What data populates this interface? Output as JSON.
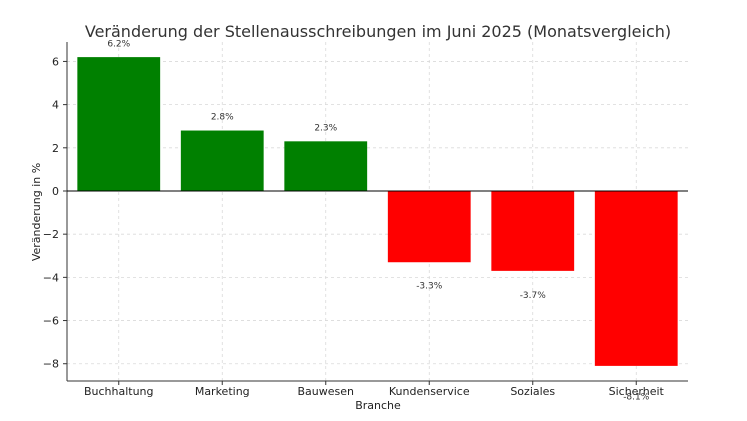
{
  "chart_data": {
    "type": "bar",
    "title": "Veränderung der Stellenausschreibungen im Juni 2025 (Monatsvergleich)",
    "xlabel": "Branche",
    "ylabel": "Veränderung in %",
    "categories": [
      "Buchhaltung",
      "Marketing",
      "Bauwesen",
      "Kundenservice",
      "Soziales",
      "Sicherheit"
    ],
    "values": [
      6.2,
      2.8,
      2.3,
      -3.3,
      -3.7,
      -8.1
    ],
    "data_labels": [
      "6.2%",
      "2.8%",
      "2.3%",
      "-3.3%",
      "-3.7%",
      "-8.1%"
    ],
    "ylim": [
      -8.8,
      6.9
    ],
    "yticks": [
      -8,
      -6,
      -4,
      -2,
      0,
      2,
      4,
      6
    ],
    "ytick_labels": [
      "−8",
      "−6",
      "−4",
      "−2",
      "0",
      "2",
      "4",
      "6"
    ],
    "grid": true,
    "colors": {
      "positive": "#008000",
      "negative": "#ff0000"
    }
  }
}
